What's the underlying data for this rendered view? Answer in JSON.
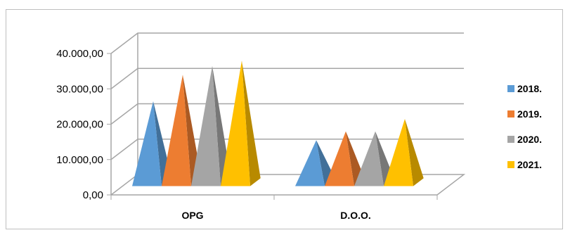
{
  "chart_data": {
    "type": "bar",
    "style": "3d-pyramid",
    "categories": [
      "OPG",
      "D.O.O."
    ],
    "series": [
      {
        "name": "2018.",
        "color": "#5b9bd5",
        "values": [
          24000,
          13000
        ]
      },
      {
        "name": "2019.",
        "color": "#ed7d31",
        "values": [
          31500,
          15500
        ]
      },
      {
        "name": "2020.",
        "color": "#a5a5a5",
        "values": [
          34000,
          15500
        ]
      },
      {
        "name": "2021.",
        "color": "#ffc000",
        "values": [
          35500,
          19000
        ]
      }
    ],
    "yticks": [
      "0,00",
      "10.000,00",
      "20.000,00",
      "30.000,00",
      "40.000,00"
    ],
    "ylim": [
      0,
      40000
    ],
    "grid": true,
    "legend_position": "right"
  }
}
